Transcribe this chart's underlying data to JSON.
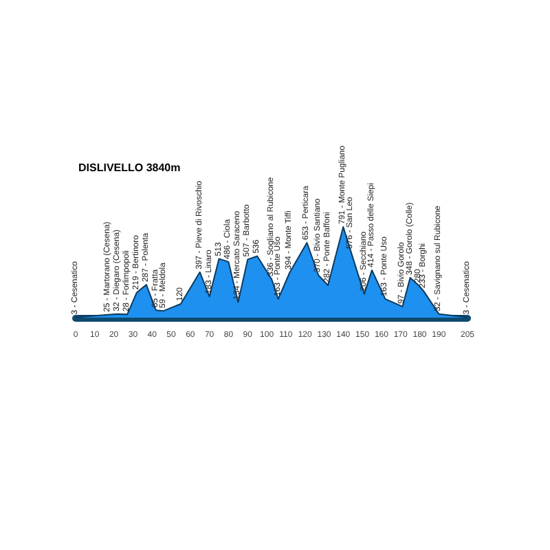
{
  "chart_data": {
    "type": "area",
    "title": "DISLIVELLO 3840m",
    "color": "#1e90f0",
    "x": [
      0,
      17,
      22,
      27,
      32,
      37,
      42,
      46,
      55,
      65,
      70,
      75,
      80,
      85,
      90,
      95,
      102.5,
      106,
      112,
      121,
      127,
      132,
      140,
      144,
      151,
      155,
      162,
      171,
      175,
      179.5,
      182,
      190,
      205
    ],
    "values": [
      3,
      25,
      32,
      28,
      219,
      287,
      65,
      59,
      120,
      397,
      183,
      513,
      486,
      134,
      507,
      536,
      336,
      163,
      394,
      653,
      370,
      282,
      791,
      576,
      206,
      414,
      163,
      97,
      348,
      280,
      233,
      32,
      3
    ],
    "value_labels": [
      "3 - Cesenatico",
      "25 - Martorano (Cesena)",
      "32 - Diegaro (Cesena)",
      "28 - Forlimpopoli",
      "219 - Bertinoro",
      "287 - Polenta",
      "65 - Fratta",
      "59 - Meldola",
      "120",
      "397 - Pieve di Rivoschio",
      "183 - Linaro",
      "513",
      "486 - Ciola",
      "134 - Mercato Saraceno",
      "507 - Barbotto",
      "536",
      "336 - Sogliano al Rubicone",
      "163 - Ponte Uso",
      "394 - Monte Tiffi",
      "653 - Perticara",
      "370 - Bivio Santiano",
      "282 - Ponte Baffoni",
      "791 - Monte Pugliano",
      "576 - San Leo",
      "206 - Secchiano",
      "414 - Passo delle Siepi",
      "163 - Ponte Uso",
      "97 - Bivio Gorolo",
      "348 - Gorolo (Colle)",
      "280",
      "233 - Borghi",
      "32 - Savignano sul Rubicone",
      "3 - Cesenatico"
    ],
    "xlim": [
      0,
      205
    ],
    "xticks": [
      0,
      10,
      20,
      30,
      40,
      50,
      60,
      70,
      80,
      90,
      100,
      110,
      120,
      130,
      140,
      150,
      160,
      170,
      180,
      190,
      205
    ],
    "tick_labels": "x",
    "grid": false
  }
}
